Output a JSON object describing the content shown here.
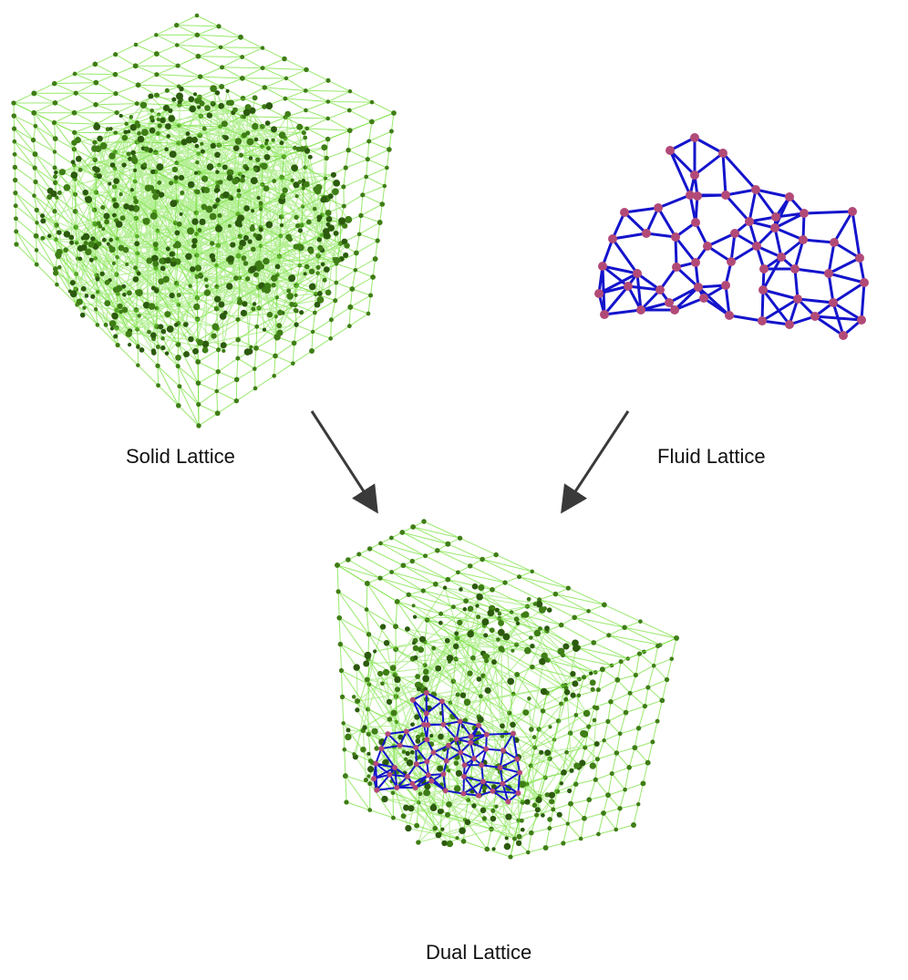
{
  "diagram": {
    "solid_caption": "Solid Lattice",
    "fluid_caption": "Fluid Lattice",
    "dual_caption": "Dual Lattice",
    "colors": {
      "solid_edge": "#77e23c",
      "solid_node": "#3f7d16",
      "solid_node_dark": "#2c5a0e",
      "fluid_edge": "#1414cc",
      "fluid_node": "#b24a78",
      "arrow": "#3a3a3a"
    },
    "arrows": [
      {
        "from": "solid-lattice",
        "to": "dual-lattice"
      },
      {
        "from": "fluid-lattice",
        "to": "dual-lattice"
      }
    ]
  }
}
